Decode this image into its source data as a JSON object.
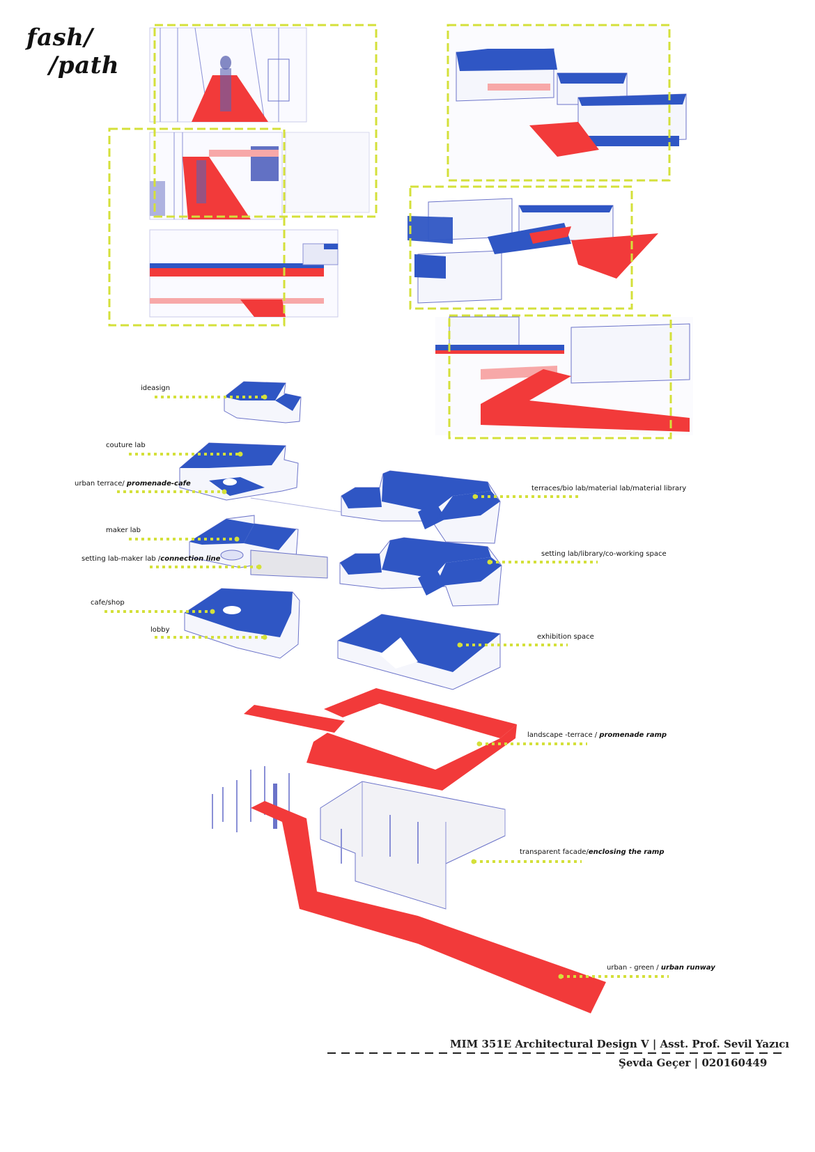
{
  "title": {
    "line1": "fash/",
    "line2": "/path"
  },
  "colors": {
    "accent_dash": "#d4e03a",
    "ramp_red": "#f23a3a",
    "floor_blue": "#2f56c4",
    "line_blue": "#6b73c9"
  },
  "labels": {
    "ideasign": "ideasign",
    "couture_lab": "couture lab",
    "urban_terrace": "urban terrace/ ",
    "urban_terrace_em": "promenade-cafe",
    "terraces": "terraces/bio lab/material lab/material library",
    "maker_lab": "maker lab",
    "setting_lab": "setting lab-maker lab /",
    "setting_lab_em": "connection line",
    "setting_library": "setting lab/library/co-working space",
    "cafe_shop": "cafe/shop",
    "lobby": "lobby",
    "exhibition": "exhibition space",
    "landscape": "landscape -terrace / ",
    "landscape_em": "promenade ramp",
    "facade": "transparent facade/",
    "facade_em": "enclosing the ramp",
    "runway": "urban - green / ",
    "runway_em": "urban runway"
  },
  "footer": {
    "course": "MIM 351E Architectural Design V | Asst. Prof. Sevil Yazıcı",
    "student": "Şevda Geçer | 020160449"
  }
}
